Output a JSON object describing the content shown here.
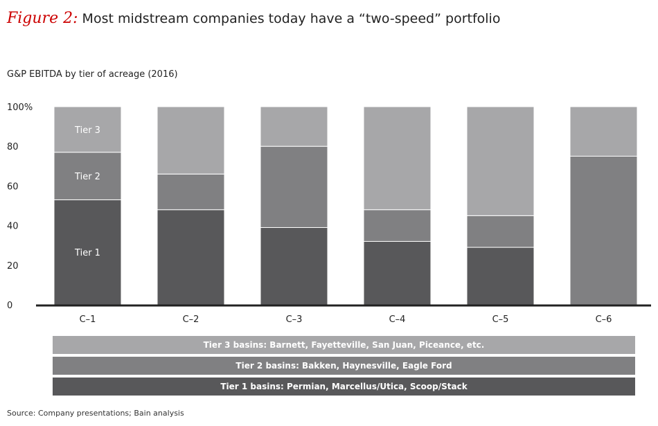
{
  "title_prefix": "Figure 2:",
  "title": "Most midstream companies today have a “two-speed” portfolio",
  "subtitle": "G&P EBITDA by tier of acreage (2016)",
  "source": "Source: Company presentations; Bain analysis",
  "chart_data": {
    "type": "bar",
    "stacked": true,
    "categories": [
      "C–1",
      "C–2",
      "C–3",
      "C–4",
      "C–5",
      "C–6"
    ],
    "series": [
      {
        "name": "Tier 1",
        "color": "#58585a",
        "values": [
          53,
          48,
          39,
          32,
          29,
          0
        ]
      },
      {
        "name": "Tier 2",
        "color": "#808082",
        "values": [
          24,
          18,
          41,
          16,
          16,
          75
        ]
      },
      {
        "name": "Tier 3",
        "color": "#a7a7a9",
        "values": [
          23,
          34,
          20,
          52,
          55,
          25
        ]
      }
    ],
    "ylim": [
      0,
      100
    ],
    "yticks": [
      "0",
      "20",
      "40",
      "60",
      "80",
      "100%"
    ],
    "grid": false,
    "bar_labels": [
      "Tier 1",
      "Tier 2",
      "Tier 3"
    ],
    "legend": [
      {
        "text": "Tier 3 basins: Barnett, Fayetteville, San Juan, Piceance, etc.",
        "color": "#a7a7a9"
      },
      {
        "text": "Tier 2 basins: Bakken, Haynesville, Eagle Ford",
        "color": "#808082"
      },
      {
        "text": "Tier 1 basins: Permian, Marcellus/Utica, Scoop/Stack",
        "color": "#58585a"
      }
    ]
  }
}
